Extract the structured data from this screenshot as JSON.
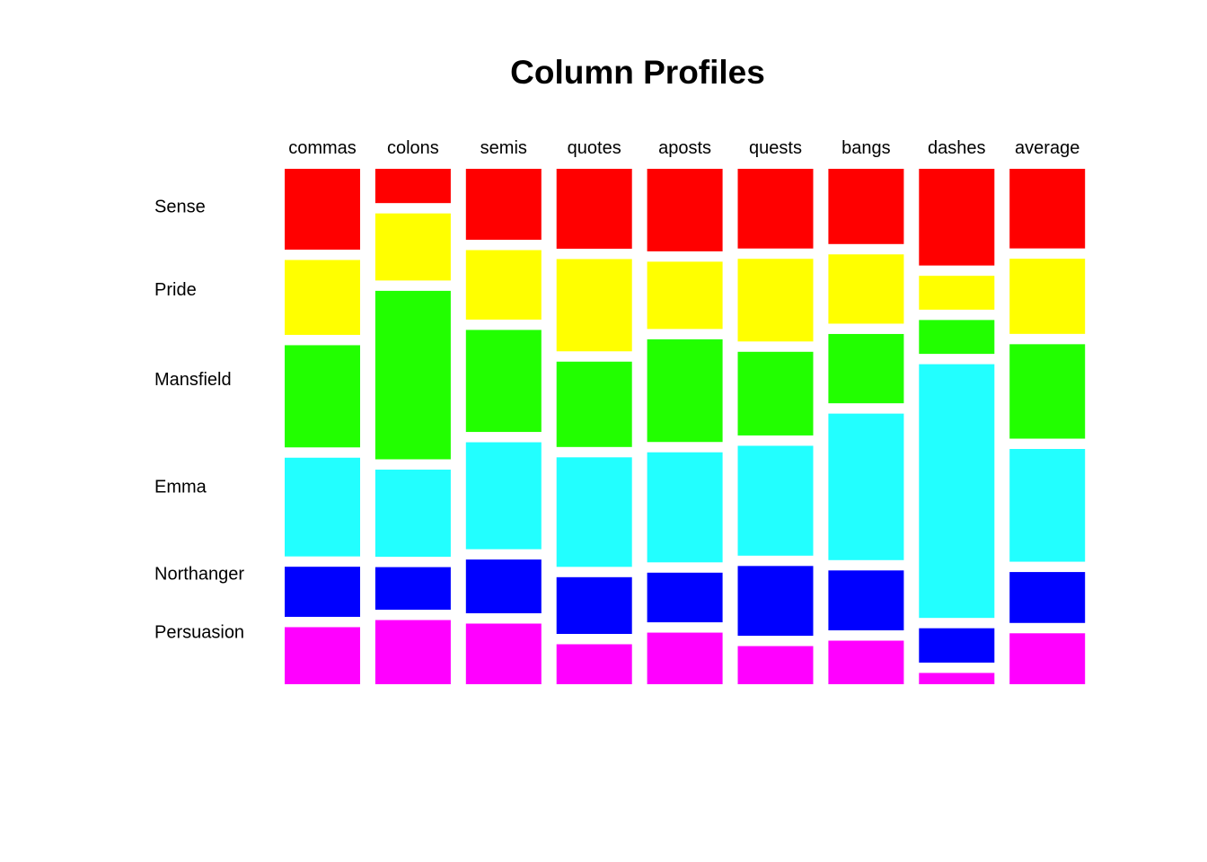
{
  "chart_data": {
    "type": "mosaic",
    "title": "Column Profiles",
    "columns": [
      "commas",
      "colons",
      "semis",
      "quotes",
      "aposts",
      "quests",
      "bangs",
      "dashes",
      "average"
    ],
    "rows": [
      "Sense",
      "Pride",
      "Mansfield",
      "Emma",
      "Northanger",
      "Persuasion"
    ],
    "colors": [
      "#FF0000",
      "#FFFF00",
      "#22FF00",
      "#22FFFF",
      "#0000FF",
      "#FF00FF"
    ],
    "series": [
      {
        "name": "Sense",
        "values": [
          0.163,
          0.07,
          0.144,
          0.162,
          0.168,
          0.161,
          0.152,
          0.197,
          0.161
        ]
      },
      {
        "name": "Pride",
        "values": [
          0.151,
          0.137,
          0.141,
          0.187,
          0.137,
          0.167,
          0.14,
          0.069,
          0.152
        ]
      },
      {
        "name": "Mansfield",
        "values": [
          0.206,
          0.344,
          0.207,
          0.173,
          0.209,
          0.169,
          0.14,
          0.069,
          0.191
        ]
      },
      {
        "name": "Emma",
        "values": [
          0.199,
          0.178,
          0.217,
          0.222,
          0.224,
          0.222,
          0.296,
          0.517,
          0.228
        ]
      },
      {
        "name": "Northanger",
        "values": [
          0.101,
          0.087,
          0.109,
          0.115,
          0.101,
          0.141,
          0.121,
          0.07,
          0.103
        ]
      },
      {
        "name": "Persuasion",
        "values": [
          0.115,
          0.131,
          0.123,
          0.081,
          0.105,
          0.077,
          0.088,
          0.023,
          0.103
        ]
      }
    ]
  }
}
